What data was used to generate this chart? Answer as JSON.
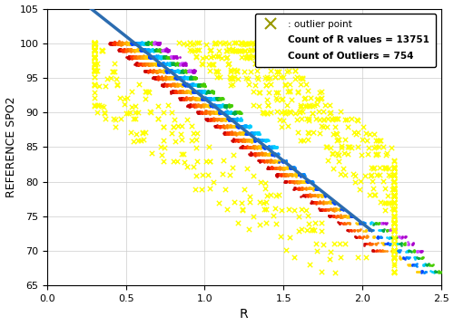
{
  "xlabel": "R",
  "ylabel": "REFERENCE SPO2",
  "xlim": [
    0,
    2.5
  ],
  "ylim": [
    65,
    105
  ],
  "xticks": [
    0,
    0.5,
    1.0,
    1.5,
    2.0,
    2.5
  ],
  "yticks": [
    65,
    70,
    75,
    80,
    85,
    90,
    95,
    100,
    105
  ],
  "line_slope": -18.0,
  "line_intercept": 110.0,
  "legend_text_outlier": ": outlier point",
  "legend_text_count_R": "Count of R values = 13751",
  "legend_text_count_out": "Count of Outliers = 754",
  "bg_color": "#ffffff",
  "grid_color": "#cccccc",
  "line_color": "#2B6CB0",
  "outlier_color": "#ffff00",
  "outlier_edge": "#999900",
  "seed": 42,
  "n_outlier_points": 754,
  "spo2_levels": [
    100,
    99,
    98,
    97,
    96,
    95,
    94,
    93,
    92,
    91,
    90,
    89,
    88,
    87,
    86,
    85,
    84,
    83,
    82,
    81,
    80,
    79,
    78,
    77,
    76,
    75,
    74,
    73,
    72,
    71,
    70,
    69,
    68,
    67
  ],
  "device_colors": [
    "#ff0000",
    "#ff6600",
    "#ff9900",
    "#ffcc00",
    "#ffff00",
    "#00aa00",
    "#00cc44",
    "#00aaaa",
    "#00ccff",
    "#0066ff",
    "#0000ff",
    "#9900cc",
    "#cc00ff",
    "#ff00ff"
  ],
  "n_devices": 14,
  "points_per_device_per_level": 30,
  "r_jitter": 0.006,
  "line_x_start": 0.27,
  "line_x_end": 2.06
}
